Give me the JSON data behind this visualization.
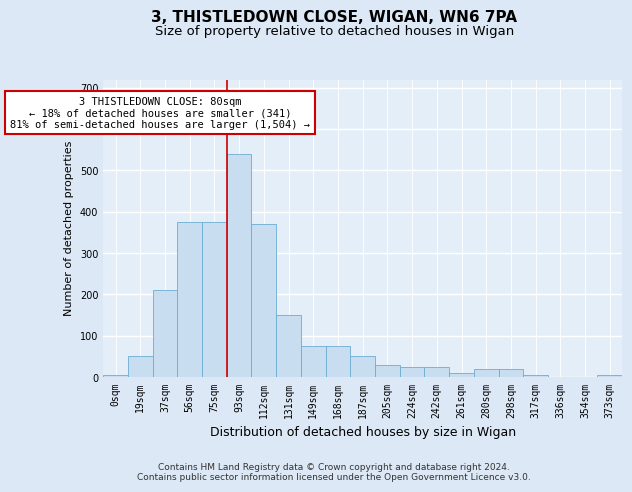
{
  "title_line1": "3, THISTLEDOWN CLOSE, WIGAN, WN6 7PA",
  "title_line2": "Size of property relative to detached houses in Wigan",
  "xlabel": "Distribution of detached houses by size in Wigan",
  "ylabel": "Number of detached properties",
  "bin_labels": [
    "0sqm",
    "19sqm",
    "37sqm",
    "56sqm",
    "75sqm",
    "93sqm",
    "112sqm",
    "131sqm",
    "149sqm",
    "168sqm",
    "187sqm",
    "205sqm",
    "224sqm",
    "242sqm",
    "261sqm",
    "280sqm",
    "298sqm",
    "317sqm",
    "336sqm",
    "354sqm",
    "373sqm"
  ],
  "bar_heights": [
    5,
    50,
    210,
    375,
    375,
    540,
    370,
    150,
    75,
    75,
    50,
    30,
    25,
    25,
    10,
    20,
    20,
    5,
    0,
    0,
    5
  ],
  "bar_color": "#c9ddf0",
  "bar_edge_color": "#6bacd0",
  "ylim": [
    0,
    720
  ],
  "yticks": [
    0,
    100,
    200,
    300,
    400,
    500,
    600,
    700
  ],
  "red_line_x": 4.5,
  "annotation_text": "3 THISTLEDOWN CLOSE: 80sqm\n← 18% of detached houses are smaller (341)\n81% of semi-detached houses are larger (1,504) →",
  "annotation_box_color": "#ffffff",
  "annotation_box_edge_color": "#cc0000",
  "footer_line1": "Contains HM Land Registry data © Crown copyright and database right 2024.",
  "footer_line2": "Contains public sector information licensed under the Open Government Licence v3.0.",
  "fig_bg_color": "#dce8f5",
  "plot_bg_color": "#e4eef8",
  "grid_color": "#ffffff",
  "title_fontsize": 11,
  "subtitle_fontsize": 9.5,
  "ylabel_fontsize": 8,
  "xlabel_fontsize": 9,
  "tick_fontsize": 7,
  "annotation_fontsize": 7.5,
  "footer_fontsize": 6.5
}
